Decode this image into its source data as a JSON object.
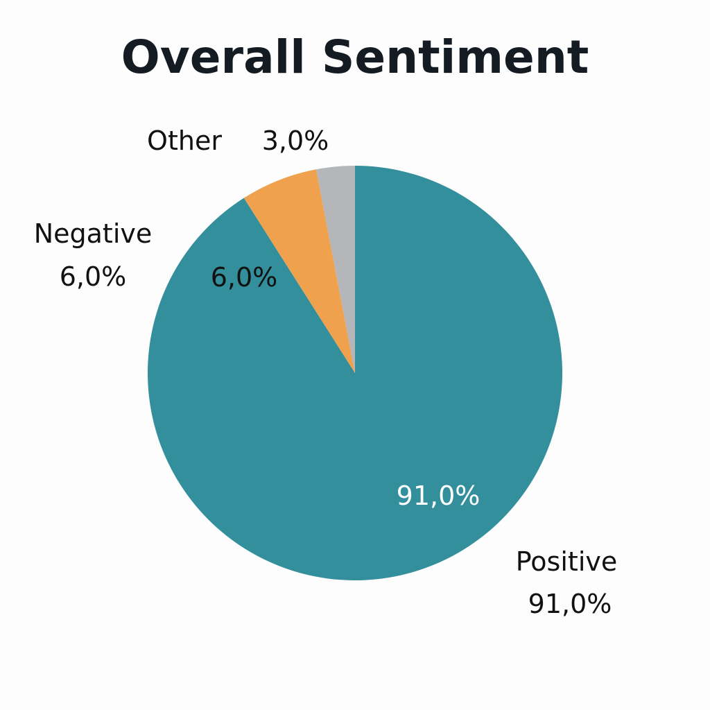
{
  "chart_data": {
    "type": "pie",
    "title": "Overall Sentiment",
    "slices": [
      {
        "label": "Positive",
        "value": 91.0,
        "value_text": "91,0%",
        "color": "#348f9c",
        "inside_text": "91,0%",
        "inside_text_color": "#ffffff"
      },
      {
        "label": "Negative",
        "value": 6.0,
        "value_text": "6,0%",
        "color": "#f0a14e",
        "inside_text": "6,0%",
        "inside_text_color": "#111111"
      },
      {
        "label": "Other",
        "value": 3.0,
        "value_text": "3,0%",
        "color": "#b4b6b9"
      }
    ]
  }
}
